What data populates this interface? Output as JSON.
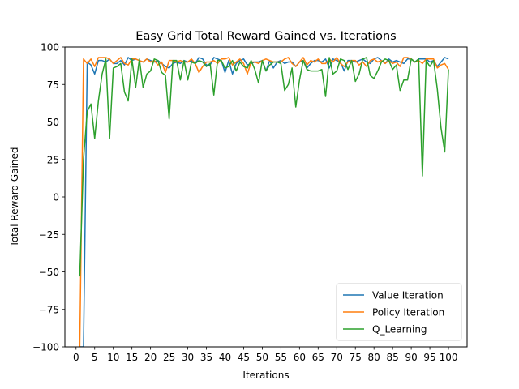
{
  "chart_data": {
    "type": "line",
    "title": "Easy Grid Total Reward Gained vs. Iterations",
    "xlabel": "Iterations",
    "ylabel": "Total Reward Gained",
    "xlim": [
      -3,
      105
    ],
    "ylim": [
      -100,
      100
    ],
    "x_ticks": [
      0,
      5,
      10,
      15,
      20,
      25,
      30,
      35,
      40,
      45,
      50,
      55,
      60,
      65,
      70,
      75,
      80,
      85,
      90,
      95,
      100
    ],
    "y_ticks": [
      100,
      75,
      50,
      25,
      0,
      -25,
      -50,
      -75,
      -100
    ],
    "grid": false,
    "legend_position": "lower right",
    "x": [
      1,
      2,
      3,
      4,
      5,
      6,
      7,
      8,
      9,
      10,
      11,
      12,
      13,
      14,
      15,
      16,
      17,
      18,
      19,
      20,
      21,
      22,
      23,
      24,
      25,
      26,
      27,
      28,
      29,
      30,
      31,
      32,
      33,
      34,
      35,
      36,
      37,
      38,
      39,
      40,
      41,
      42,
      43,
      44,
      45,
      46,
      47,
      48,
      49,
      50,
      51,
      52,
      53,
      54,
      55,
      56,
      57,
      58,
      59,
      60,
      61,
      62,
      63,
      64,
      65,
      66,
      67,
      68,
      69,
      70,
      71,
      72,
      73,
      74,
      75,
      76,
      77,
      78,
      79,
      80,
      81,
      82,
      83,
      84,
      85,
      86,
      87,
      88,
      89,
      90,
      91,
      92,
      93,
      94,
      95,
      96,
      97,
      98,
      99,
      100
    ],
    "series": [
      {
        "name": "Value Iteration",
        "color": "#1f77b4",
        "values": [
          -100,
          -100,
          90,
          88,
          82,
          91,
          91,
          90,
          92,
          89,
          89,
          91,
          88,
          93,
          91,
          92,
          91,
          90,
          92,
          91,
          90,
          91,
          89,
          87,
          86,
          89,
          90,
          89,
          91,
          90,
          91,
          89,
          93,
          92,
          88,
          88,
          93,
          92,
          91,
          83,
          91,
          82,
          89,
          91,
          92,
          88,
          89,
          90,
          90,
          91,
          84,
          91,
          86,
          90,
          91,
          89,
          90,
          90,
          87,
          90,
          91,
          86,
          89,
          91,
          91,
          90,
          92,
          86,
          92,
          91,
          90,
          84,
          91,
          91,
          90,
          91,
          92,
          90,
          89,
          92,
          93,
          91,
          89,
          92,
          90,
          91,
          90,
          89,
          92,
          92,
          90,
          92,
          92,
          92,
          90,
          91,
          87,
          90,
          93,
          92
        ]
      },
      {
        "name": "Policy Iteration",
        "color": "#ff7f0e",
        "values": [
          -100,
          92,
          89,
          92,
          87,
          93,
          93,
          93,
          92,
          89,
          91,
          93,
          89,
          88,
          92,
          92,
          91,
          90,
          92,
          90,
          91,
          88,
          90,
          83,
          91,
          91,
          90,
          91,
          90,
          90,
          92,
          89,
          83,
          87,
          90,
          90,
          91,
          89,
          92,
          92,
          93,
          88,
          90,
          92,
          89,
          82,
          90,
          90,
          89,
          91,
          92,
          91,
          90,
          90,
          90,
          92,
          93,
          89,
          87,
          90,
          93,
          88,
          91,
          90,
          92,
          89,
          89,
          92,
          90,
          93,
          89,
          87,
          90,
          91,
          91,
          88,
          90,
          87,
          91,
          92,
          90,
          91,
          89,
          91,
          89,
          90,
          87,
          93,
          93,
          92,
          90,
          91,
          89,
          92,
          92,
          92,
          86,
          88,
          89,
          85
        ]
      },
      {
        "name": "Q_Learning",
        "color": "#2ca02c",
        "values": [
          -53,
          25,
          57,
          62,
          39,
          64,
          82,
          92,
          39,
          86,
          87,
          89,
          70,
          64,
          92,
          73,
          92,
          73,
          82,
          84,
          92,
          91,
          83,
          81,
          52,
          91,
          91,
          78,
          91,
          78,
          90,
          89,
          91,
          90,
          87,
          89,
          68,
          91,
          91,
          86,
          87,
          91,
          84,
          90,
          87,
          86,
          91,
          85,
          76,
          91,
          84,
          88,
          90,
          90,
          89,
          71,
          75,
          86,
          60,
          78,
          91,
          85,
          84,
          84,
          84,
          85,
          67,
          93,
          82,
          84,
          92,
          91,
          85,
          91,
          77,
          82,
          92,
          93,
          81,
          79,
          84,
          90,
          92,
          91,
          85,
          88,
          71,
          78,
          78,
          92,
          90,
          92,
          14,
          91,
          87,
          91,
          72,
          46,
          30,
          85
        ]
      }
    ]
  }
}
